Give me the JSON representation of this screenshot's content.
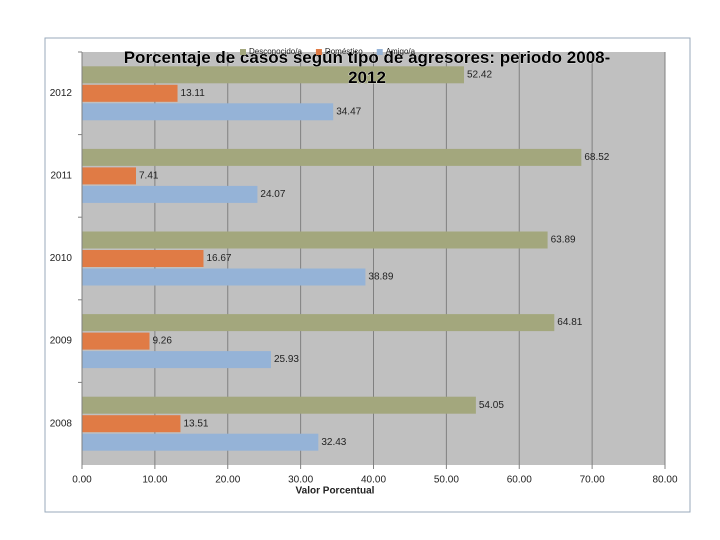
{
  "chart_data": {
    "type": "hbar",
    "title": "Porcentaje de casos según tipo de agresores: periodo 2008-2012",
    "x_label": "Valor Porcentual",
    "categories": [
      "2008",
      "2009",
      "2010",
      "2011",
      "2012"
    ],
    "series": [
      {
        "name": "Desconocido/a",
        "color": "#a3a77d",
        "values": [
          54.05,
          64.81,
          63.89,
          68.52,
          52.42
        ]
      },
      {
        "name": "Doméstico",
        "color": "#e07b45",
        "values": [
          13.51,
          9.26,
          16.67,
          7.41,
          13.11
        ]
      },
      {
        "name": "Amigo/a",
        "color": "#95b3d7",
        "values": [
          32.43,
          25.93,
          38.89,
          24.07,
          34.47
        ]
      }
    ],
    "xlim": [
      0,
      80
    ],
    "xticks": [
      {
        "value": 0,
        "label": "0.00"
      },
      {
        "value": 10,
        "label": "10.00"
      },
      {
        "value": 20,
        "label": "20.00"
      },
      {
        "value": 30,
        "label": "30.00"
      },
      {
        "value": 40,
        "label": "40.00"
      },
      {
        "value": 50,
        "label": "50.00"
      },
      {
        "value": 60,
        "label": "60.00"
      },
      {
        "value": 70,
        "label": "70.00"
      },
      {
        "value": 80,
        "label": "80.00"
      }
    ],
    "grid": true,
    "legend": "top"
  }
}
